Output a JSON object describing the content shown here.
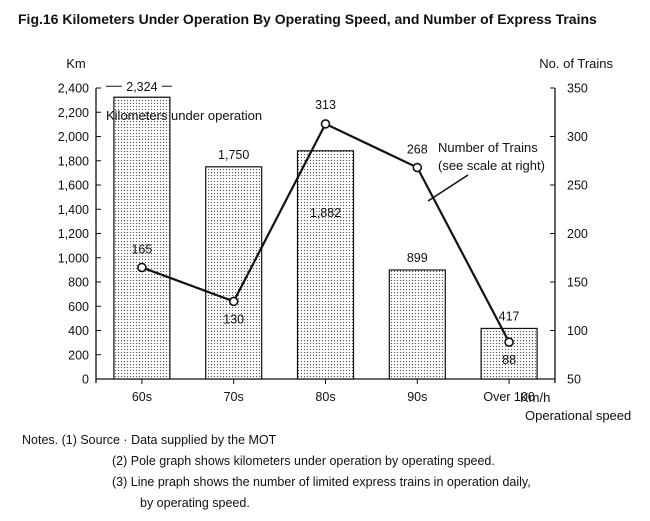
{
  "figure": {
    "title": "Fig.16  Kilometers Under Operation By Operating Speed, and Number of Express Trains"
  },
  "chart_data": {
    "type": "bar",
    "categories": [
      "60s",
      "70s",
      "80s",
      "90s",
      "Over 100"
    ],
    "series": [
      {
        "name": "Kilometers under operation",
        "type": "bar",
        "axis": "left",
        "values": [
          2324,
          1750,
          1882,
          899,
          417
        ],
        "value_labels": [
          "2,324",
          "1,750",
          "1,882",
          "899",
          "417"
        ]
      },
      {
        "name": "Number of Trains",
        "type": "line",
        "axis": "right",
        "values": [
          165,
          130,
          313,
          268,
          88
        ],
        "value_labels": [
          "165",
          "130",
          "313",
          "268",
          "88"
        ]
      }
    ],
    "y_left": {
      "label": "Km",
      "range": [
        0,
        2400
      ],
      "ticks": [
        "0",
        "200",
        "400",
        "600",
        "800",
        "1,000",
        "1,200",
        "1,400",
        "1,600",
        "1,800",
        "2,000",
        "2,200",
        "2,400"
      ]
    },
    "y_right": {
      "label": "No. of Trains",
      "range": [
        50,
        350
      ],
      "ticks": [
        "50",
        "100",
        "150",
        "200",
        "250",
        "300",
        "350"
      ]
    },
    "x_axis": {
      "unit": "Km/h",
      "label": "Operational speed"
    },
    "annotations": {
      "bar_series_label": "Kilometers under operation",
      "line_label_1": "Number of Trains",
      "line_label_2": "(see scale at right)"
    },
    "bar_fill": "dotted",
    "grid": false
  },
  "notes": [
    "Notes. (1) Source · Data supplied by the MOT",
    "(2) Pole graph shows kilometers under operation by operating speed.",
    "(3) Line praph shows the number of limited express trains in operation daily,",
    "by operating speed."
  ]
}
